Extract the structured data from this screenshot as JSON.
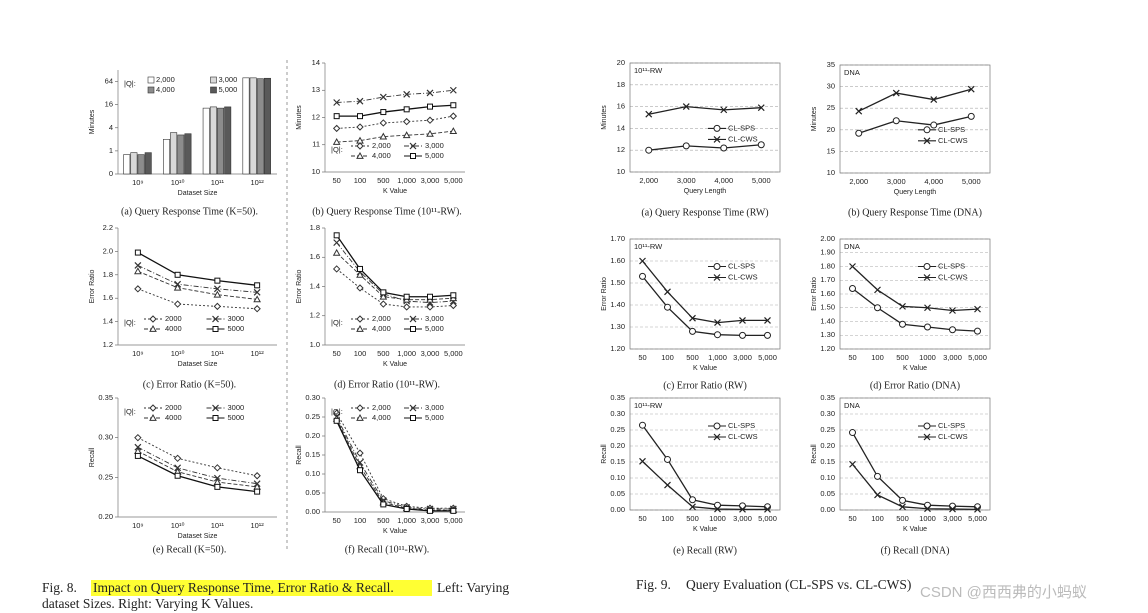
{
  "chart_data": [
    {
      "type": "bar",
      "caption": "(a) Query Response Time (K=50).",
      "xlabel": "Dataset Size",
      "ylabel": "Minutes",
      "legend_label": "|Q|:",
      "legend": "upper",
      "log_scale": true,
      "grid": false,
      "categories": [
        "10⁹",
        "10¹⁰",
        "10¹¹",
        "10¹²"
      ],
      "ylim": [
        0.25,
        128
      ],
      "yticks": [
        {
          "value": 0.25,
          "label": "0"
        },
        1,
        4,
        16,
        64
      ],
      "series": [
        {
          "name": "2,000",
          "color": "#ffffff",
          "values": [
            0.8,
            2,
            13,
            80
          ]
        },
        {
          "name": "3,000",
          "color": "#d9d9d9",
          "values": [
            0.9,
            3,
            14,
            80
          ]
        },
        {
          "name": "4,000",
          "color": "#8c8c8c",
          "values": [
            0.8,
            2.6,
            13,
            76
          ]
        },
        {
          "name": "5,000",
          "color": "#595959",
          "values": [
            0.9,
            2.8,
            14,
            78
          ]
        }
      ]
    },
    {
      "type": "line",
      "caption": "(b) Query Response Time (10¹¹-RW).",
      "xlabel": "K Value",
      "ylabel": "Minutes",
      "legend_label": "|Q|:",
      "legend": "lower",
      "grid": false,
      "categories": [
        "50",
        "100",
        "500",
        "1,000",
        "3,000",
        "5,000"
      ],
      "ylim": [
        10,
        14
      ],
      "yticks": [
        10,
        11,
        12,
        13,
        14
      ],
      "series": [
        {
          "name": "2,000",
          "color": "#333333",
          "marker": "diamond",
          "dash": "2 2",
          "values": [
            11.6,
            11.65,
            11.8,
            11.85,
            11.9,
            12.05
          ]
        },
        {
          "name": "3,000",
          "color": "#333333",
          "marker": "x",
          "dash": "5 2 1 2",
          "values": [
            12.55,
            12.6,
            12.75,
            12.85,
            12.9,
            13.0
          ]
        },
        {
          "name": "4,000",
          "color": "#333333",
          "marker": "triangle",
          "dash": "4 2",
          "values": [
            11.1,
            11.15,
            11.3,
            11.35,
            11.4,
            11.5
          ]
        },
        {
          "name": "5,000",
          "color": "#111111",
          "marker": "square",
          "dash": "",
          "values": [
            12.05,
            12.05,
            12.2,
            12.3,
            12.4,
            12.45
          ]
        }
      ]
    },
    {
      "type": "line",
      "caption": "(c) Error Ratio (K=50).",
      "xlabel": "Dataset Size",
      "ylabel": "Error Ratio",
      "legend_label": "|Q|:",
      "legend": "lower",
      "grid": false,
      "categories": [
        "10⁹",
        "10¹⁰",
        "10¹¹",
        "10¹²"
      ],
      "ylim": [
        1.2,
        2.2
      ],
      "yticks": [
        1.2,
        1.4,
        1.6,
        1.8,
        {
          "value": 2,
          "label": "2.0"
        },
        2.2
      ],
      "series": [
        {
          "name": "2000",
          "color": "#333333",
          "marker": "diamond",
          "dash": "2 2",
          "values": [
            1.68,
            1.55,
            1.53,
            1.51
          ]
        },
        {
          "name": "3000",
          "color": "#333333",
          "marker": "x",
          "dash": "5 2 1 2",
          "values": [
            1.88,
            1.72,
            1.68,
            1.65
          ]
        },
        {
          "name": "4000",
          "color": "#333333",
          "marker": "triangle",
          "dash": "4 2",
          "values": [
            1.83,
            1.69,
            1.63,
            1.59
          ]
        },
        {
          "name": "5000",
          "color": "#111111",
          "marker": "square",
          "dash": "",
          "values": [
            1.99,
            1.8,
            1.75,
            1.71
          ]
        }
      ]
    },
    {
      "type": "line",
      "caption": "(d) Error Ratio (10¹¹-RW).",
      "xlabel": "K Value",
      "ylabel": "Error Ratio",
      "legend_label": "|Q|:",
      "legend": "lower",
      "grid": false,
      "categories": [
        "50",
        "100",
        "500",
        "1,000",
        "3,000",
        "5,000"
      ],
      "ylim": [
        1,
        1.8
      ],
      "yticks": [
        {
          "value": 1,
          "label": "1.0"
        },
        1.2,
        1.4,
        1.6,
        1.8
      ],
      "series": [
        {
          "name": "2,000",
          "color": "#333333",
          "marker": "diamond",
          "dash": "2 2",
          "values": [
            1.52,
            1.39,
            1.28,
            1.26,
            1.26,
            1.27
          ]
        },
        {
          "name": "3,000",
          "color": "#333333",
          "marker": "x",
          "dash": "5 2 1 2",
          "values": [
            1.7,
            1.5,
            1.35,
            1.3,
            1.29,
            1.3
          ]
        },
        {
          "name": "4,000",
          "color": "#333333",
          "marker": "triangle",
          "dash": "4 2",
          "values": [
            1.63,
            1.48,
            1.33,
            1.31,
            1.31,
            1.32
          ]
        },
        {
          "name": "5,000",
          "color": "#111111",
          "marker": "square",
          "dash": "",
          "values": [
            1.75,
            1.52,
            1.36,
            1.33,
            1.33,
            1.34
          ]
        }
      ]
    },
    {
      "type": "line",
      "caption": "(e) Recall (K=50).",
      "xlabel": "Dataset Size",
      "ylabel": "Recall",
      "legend_label": "|Q|:",
      "legend": "upper",
      "grid": false,
      "categories": [
        "10⁹",
        "10¹⁰",
        "10¹¹",
        "10¹²"
      ],
      "ylim": [
        0.2,
        0.35
      ],
      "yticks": [
        {
          "value": 0.2,
          "label": "0.20"
        },
        0.25,
        {
          "value": 0.3,
          "label": "0.30"
        },
        0.35
      ],
      "series": [
        {
          "name": "2000",
          "color": "#333333",
          "marker": "diamond",
          "dash": "2 2",
          "values": [
            0.3,
            0.274,
            0.262,
            0.252
          ]
        },
        {
          "name": "3000",
          "color": "#333333",
          "marker": "x",
          "dash": "5 2 1 2",
          "values": [
            0.288,
            0.262,
            0.249,
            0.242
          ]
        },
        {
          "name": "4000",
          "color": "#333333",
          "marker": "triangle",
          "dash": "4 2",
          "values": [
            0.283,
            0.257,
            0.244,
            0.238
          ]
        },
        {
          "name": "5000",
          "color": "#111111",
          "marker": "square",
          "dash": "",
          "values": [
            0.277,
            0.252,
            0.238,
            0.232
          ]
        }
      ]
    },
    {
      "type": "line",
      "caption": "(f) Recall (10¹¹-RW).",
      "xlabel": "K Value",
      "ylabel": "Recall",
      "legend_label": "|Q|:",
      "legend": "upper",
      "grid": false,
      "categories": [
        "50",
        "100",
        "500",
        "1,000",
        "3,000",
        "5,000"
      ],
      "ylim": [
        0,
        0.3
      ],
      "yticks": [
        {
          "value": 0,
          "label": "0.00"
        },
        0.05,
        {
          "value": 0.1,
          "label": "0.10"
        },
        0.15,
        {
          "value": 0.2,
          "label": "0.20"
        },
        0.25,
        {
          "value": 0.3,
          "label": "0.30"
        }
      ],
      "series": [
        {
          "name": "2,000",
          "color": "#333333",
          "marker": "diamond",
          "dash": "2 2",
          "values": [
            0.26,
            0.155,
            0.035,
            0.015,
            0.01,
            0.01
          ]
        },
        {
          "name": "3,000",
          "color": "#333333",
          "marker": "x",
          "dash": "5 2 1 2",
          "values": [
            0.25,
            0.13,
            0.03,
            0.012,
            0.008,
            0.008
          ]
        },
        {
          "name": "4,000",
          "color": "#333333",
          "marker": "triangle",
          "dash": "4 2",
          "values": [
            0.245,
            0.12,
            0.025,
            0.01,
            0.005,
            0.005
          ]
        },
        {
          "name": "5,000",
          "color": "#111111",
          "marker": "square",
          "dash": "",
          "values": [
            0.24,
            0.11,
            0.02,
            0.008,
            0.003,
            0.003
          ]
        }
      ]
    },
    {
      "type": "line",
      "caption": "(a) Query Response Time (RW)",
      "annotation": "10¹¹-RW",
      "xlabel": "Query Length",
      "ylabel": "Minutes",
      "legend": "center-right",
      "grid": true,
      "box": true,
      "categories": [
        "2,000",
        "3,000",
        "4,000",
        "5,000"
      ],
      "ylim": [
        10,
        20
      ],
      "yticks": [
        10,
        12,
        14,
        16,
        18,
        20
      ],
      "series": [
        {
          "name": "CL-SPS",
          "color": "#222222",
          "marker": "circle",
          "dash": "",
          "values": [
            12,
            12.4,
            12.2,
            12.5
          ]
        },
        {
          "name": "CL-CWS",
          "color": "#222222",
          "marker": "x",
          "dash": "",
          "values": [
            15.3,
            16,
            15.7,
            15.9
          ]
        }
      ]
    },
    {
      "type": "line",
      "caption": "(b) Query Response Time (DNA)",
      "annotation": "DNA",
      "xlabel": "Query Length",
      "ylabel": "Minutes",
      "legend": "center-right",
      "grid": true,
      "box": true,
      "categories": [
        "2,000",
        "3,000",
        "4,000",
        "5,000"
      ],
      "ylim": [
        10,
        35
      ],
      "yticks": [
        10,
        15,
        20,
        25,
        30,
        35
      ],
      "series": [
        {
          "name": "CL-SPS",
          "color": "#222222",
          "marker": "circle",
          "dash": "",
          "values": [
            19.2,
            22.1,
            21.1,
            23.1
          ]
        },
        {
          "name": "CL-CWS",
          "color": "#222222",
          "marker": "x",
          "dash": "",
          "values": [
            24.3,
            28.5,
            27,
            29.4
          ]
        }
      ]
    },
    {
      "type": "line",
      "caption": "(c) Error Ratio (RW)",
      "annotation": "10¹¹-RW",
      "xlabel": "K Value",
      "ylabel": "Error Ratio",
      "legend": "upper-right",
      "grid": true,
      "box": true,
      "categories": [
        "50",
        "100",
        "500",
        "1,000",
        "3,000",
        "5,000"
      ],
      "ylim": [
        1.2,
        1.7
      ],
      "yticks": [
        {
          "value": 1.2,
          "label": "1.20"
        },
        {
          "value": 1.3,
          "label": "1.30"
        },
        {
          "value": 1.4,
          "label": "1.40"
        },
        {
          "value": 1.5,
          "label": "1.50"
        },
        {
          "value": 1.6,
          "label": "1.60"
        },
        {
          "value": 1.7,
          "label": "1.70"
        }
      ],
      "series": [
        {
          "name": "CL-SPS",
          "color": "#222222",
          "marker": "circle",
          "dash": "",
          "values": [
            1.53,
            1.39,
            1.28,
            1.265,
            1.262,
            1.262
          ]
        },
        {
          "name": "CL-CWS",
          "color": "#222222",
          "marker": "x",
          "dash": "",
          "values": [
            1.6,
            1.46,
            1.34,
            1.32,
            1.33,
            1.33
          ]
        }
      ]
    },
    {
      "type": "line",
      "caption": "(d) Error Ratio (DNA)",
      "annotation": "DNA",
      "xlabel": "K Value",
      "ylabel": "Error Ratio",
      "legend": "upper-right",
      "grid": true,
      "box": true,
      "categories": [
        "50",
        "100",
        "500",
        "1000",
        "3,000",
        "5,000"
      ],
      "ylim": [
        1.2,
        2
      ],
      "yticks": [
        {
          "value": 1.2,
          "label": "1.20"
        },
        {
          "value": 1.3,
          "label": "1.30"
        },
        {
          "value": 1.4,
          "label": "1.40"
        },
        {
          "value": 1.5,
          "label": "1.50"
        },
        {
          "value": 1.6,
          "label": "1.60"
        },
        {
          "value": 1.7,
          "label": "1.70"
        },
        {
          "value": 1.8,
          "label": "1.80"
        },
        {
          "value": 1.9,
          "label": "1.90"
        },
        {
          "value": 2,
          "label": "2.00"
        }
      ],
      "series": [
        {
          "name": "CL-SPS",
          "color": "#222222",
          "marker": "circle",
          "dash": "",
          "values": [
            1.64,
            1.5,
            1.38,
            1.36,
            1.34,
            1.33
          ]
        },
        {
          "name": "CL-CWS",
          "color": "#222222",
          "marker": "x",
          "dash": "",
          "values": [
            1.8,
            1.63,
            1.51,
            1.5,
            1.48,
            1.49
          ]
        }
      ]
    },
    {
      "type": "line",
      "caption": "(e) Recall (RW)",
      "annotation": "10¹¹-RW",
      "xlabel": "K Value",
      "ylabel": "Recall",
      "legend": "upper-right",
      "grid": true,
      "box": true,
      "categories": [
        "50",
        "100",
        "500",
        "1000",
        "3,000",
        "5,000"
      ],
      "ylim": [
        0,
        0.35
      ],
      "yticks": [
        {
          "value": 0,
          "label": "0.00"
        },
        0.05,
        {
          "value": 0.1,
          "label": "0.10"
        },
        0.15,
        {
          "value": 0.2,
          "label": "0.20"
        },
        0.25,
        {
          "value": 0.3,
          "label": "0.30"
        },
        0.35
      ],
      "series": [
        {
          "name": "CL-SPS",
          "color": "#222222",
          "marker": "circle",
          "dash": "",
          "values": [
            0.265,
            0.158,
            0.032,
            0.015,
            0.013,
            0.01
          ]
        },
        {
          "name": "CL-CWS",
          "color": "#222222",
          "marker": "x",
          "dash": "",
          "values": [
            0.152,
            0.078,
            0.01,
            0.003,
            0.002,
            0.002
          ]
        }
      ]
    },
    {
      "type": "line",
      "caption": "(f) Recall (DNA)",
      "annotation": "DNA",
      "xlabel": "K Value",
      "ylabel": "Recall",
      "legend": "upper-right",
      "grid": true,
      "box": true,
      "categories": [
        "50",
        "100",
        "500",
        "1000",
        "3,000",
        "5,000"
      ],
      "ylim": [
        0,
        0.35
      ],
      "yticks": [
        {
          "value": 0,
          "label": "0.00"
        },
        0.05,
        {
          "value": 0.1,
          "label": "0.10"
        },
        0.15,
        {
          "value": 0.2,
          "label": "0.20"
        },
        0.25,
        {
          "value": 0.3,
          "label": "0.30"
        },
        0.35
      ],
      "series": [
        {
          "name": "CL-SPS",
          "color": "#222222",
          "marker": "circle",
          "dash": "",
          "values": [
            0.242,
            0.105,
            0.03,
            0.015,
            0.012,
            0.01
          ]
        },
        {
          "name": "CL-CWS",
          "color": "#222222",
          "marker": "x",
          "dash": "",
          "values": [
            0.143,
            0.047,
            0.01,
            0.004,
            0.003,
            0.002
          ]
        }
      ]
    }
  ],
  "fig8": {
    "label": "Fig. 8.",
    "highlight": "Impact on Query Response Time, Error Ratio & Recall.",
    "rest": "Left: Varying dataset Sizes. Right: Varying K Values."
  },
  "fig9": {
    "label": "Fig. 9.",
    "text": "Query Evaluation (CL-SPS vs. CL-CWS)"
  },
  "watermark": "CSDN @西西弗的小蚂蚁"
}
